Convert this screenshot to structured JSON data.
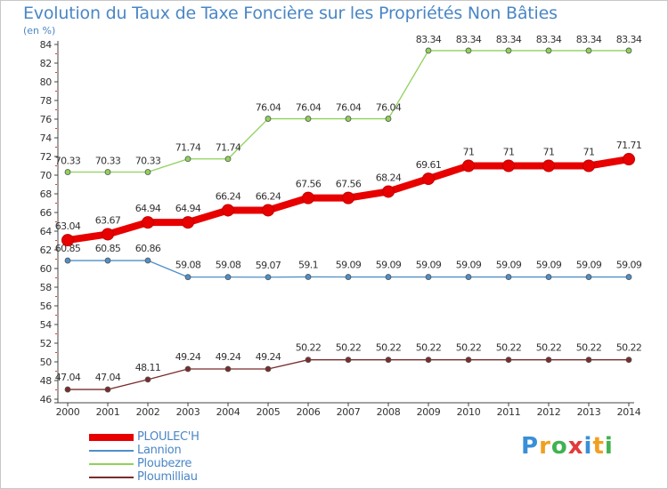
{
  "header": {
    "title": "Evolution du Taux de Taxe Foncière sur les Propriétés Non Bâties",
    "unit": "(en %)"
  },
  "logo": {
    "letters": [
      "P",
      "r",
      "o",
      "x",
      "i",
      "t",
      "i"
    ],
    "colors": [
      "#3a8fd6",
      "#f0a020",
      "#3fb34f",
      "#e23b3b",
      "#3a8fd6",
      "#f0a020",
      "#3fb34f"
    ]
  },
  "chart_data": {
    "type": "line",
    "x": [
      "2000",
      "2001",
      "2002",
      "2003",
      "2004",
      "2005",
      "2006",
      "2007",
      "2008",
      "2009",
      "2010",
      "2011",
      "2012",
      "2013",
      "2014"
    ],
    "ylim": [
      46,
      84
    ],
    "yticks": [
      46,
      48,
      50,
      52,
      54,
      56,
      58,
      60,
      62,
      64,
      66,
      68,
      70,
      72,
      74,
      76,
      78,
      80,
      82,
      84
    ],
    "grid": false,
    "legend_position": "bottom-left",
    "series": [
      {
        "name": "PLOULEC'H",
        "color": "#e80000",
        "values": [
          63.04,
          63.67,
          64.94,
          64.94,
          66.24,
          66.24,
          67.56,
          67.56,
          68.24,
          69.61,
          71,
          71,
          71,
          71,
          71.71
        ],
        "labels": [
          "63.04",
          "63.67",
          "64.94",
          "64.94",
          "66.24",
          "66.24",
          "67.56",
          "67.56",
          "68.24",
          "69.61",
          "71",
          "71",
          "71",
          "71",
          "71.71"
        ]
      },
      {
        "name": "Lannion",
        "color": "#4f8fc7",
        "values": [
          60.85,
          60.85,
          60.86,
          59.08,
          59.08,
          59.07,
          59.1,
          59.09,
          59.09,
          59.09,
          59.09,
          59.09,
          59.09,
          59.09,
          59.09
        ],
        "labels": [
          "60.85",
          "60.85",
          "60.86",
          "59.08",
          "59.08",
          "59.07",
          "59.1",
          "59.09",
          "59.09",
          "59.09",
          "59.09",
          "59.09",
          "59.09",
          "59.09",
          "59.09"
        ]
      },
      {
        "name": "Ploubezre",
        "color": "#8fd25a",
        "values": [
          70.33,
          70.33,
          70.33,
          71.74,
          71.74,
          76.04,
          76.04,
          76.04,
          76.04,
          83.34,
          83.34,
          83.34,
          83.34,
          83.34,
          83.34
        ],
        "labels": [
          "70.33",
          "70.33",
          "70.33",
          "71.74",
          "71.74",
          "76.04",
          "76.04",
          "76.04",
          "76.04",
          "83.34",
          "83.34",
          "83.34",
          "83.34",
          "83.34",
          "83.34"
        ]
      },
      {
        "name": "Ploumilliau",
        "color": "#7a2b2b",
        "values": [
          47.04,
          47.04,
          48.11,
          49.24,
          49.24,
          49.24,
          50.22,
          50.22,
          50.22,
          50.22,
          50.22,
          50.22,
          50.22,
          50.22,
          50.22
        ],
        "labels": [
          "47.04",
          "47.04",
          "48.11",
          "49.24",
          "49.24",
          "49.24",
          "50.22",
          "50.22",
          "50.22",
          "50.22",
          "50.22",
          "50.22",
          "50.22",
          "50.22",
          "50.22"
        ]
      }
    ]
  }
}
